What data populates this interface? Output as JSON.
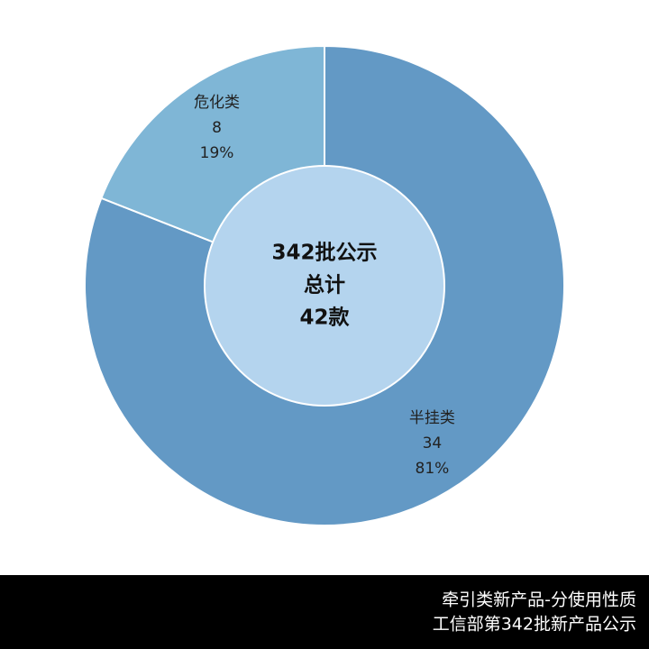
{
  "chart_data": {
    "type": "donut",
    "categories": [
      "半挂类",
      "危化类"
    ],
    "values": [
      34,
      8
    ],
    "percentages": [
      {
        "value": 81,
        "label": "81%"
      },
      {
        "value": 19,
        "label": "19%"
      }
    ],
    "colors": [
      "#6399c5",
      "#7fb6d6"
    ],
    "center_color": "#b4d4ee",
    "center_text": [
      "342批公示",
      "总计",
      "42款"
    ]
  },
  "footer": [
    "牵引类新产品-分使用性质",
    "工信部第342批新产品公示"
  ]
}
